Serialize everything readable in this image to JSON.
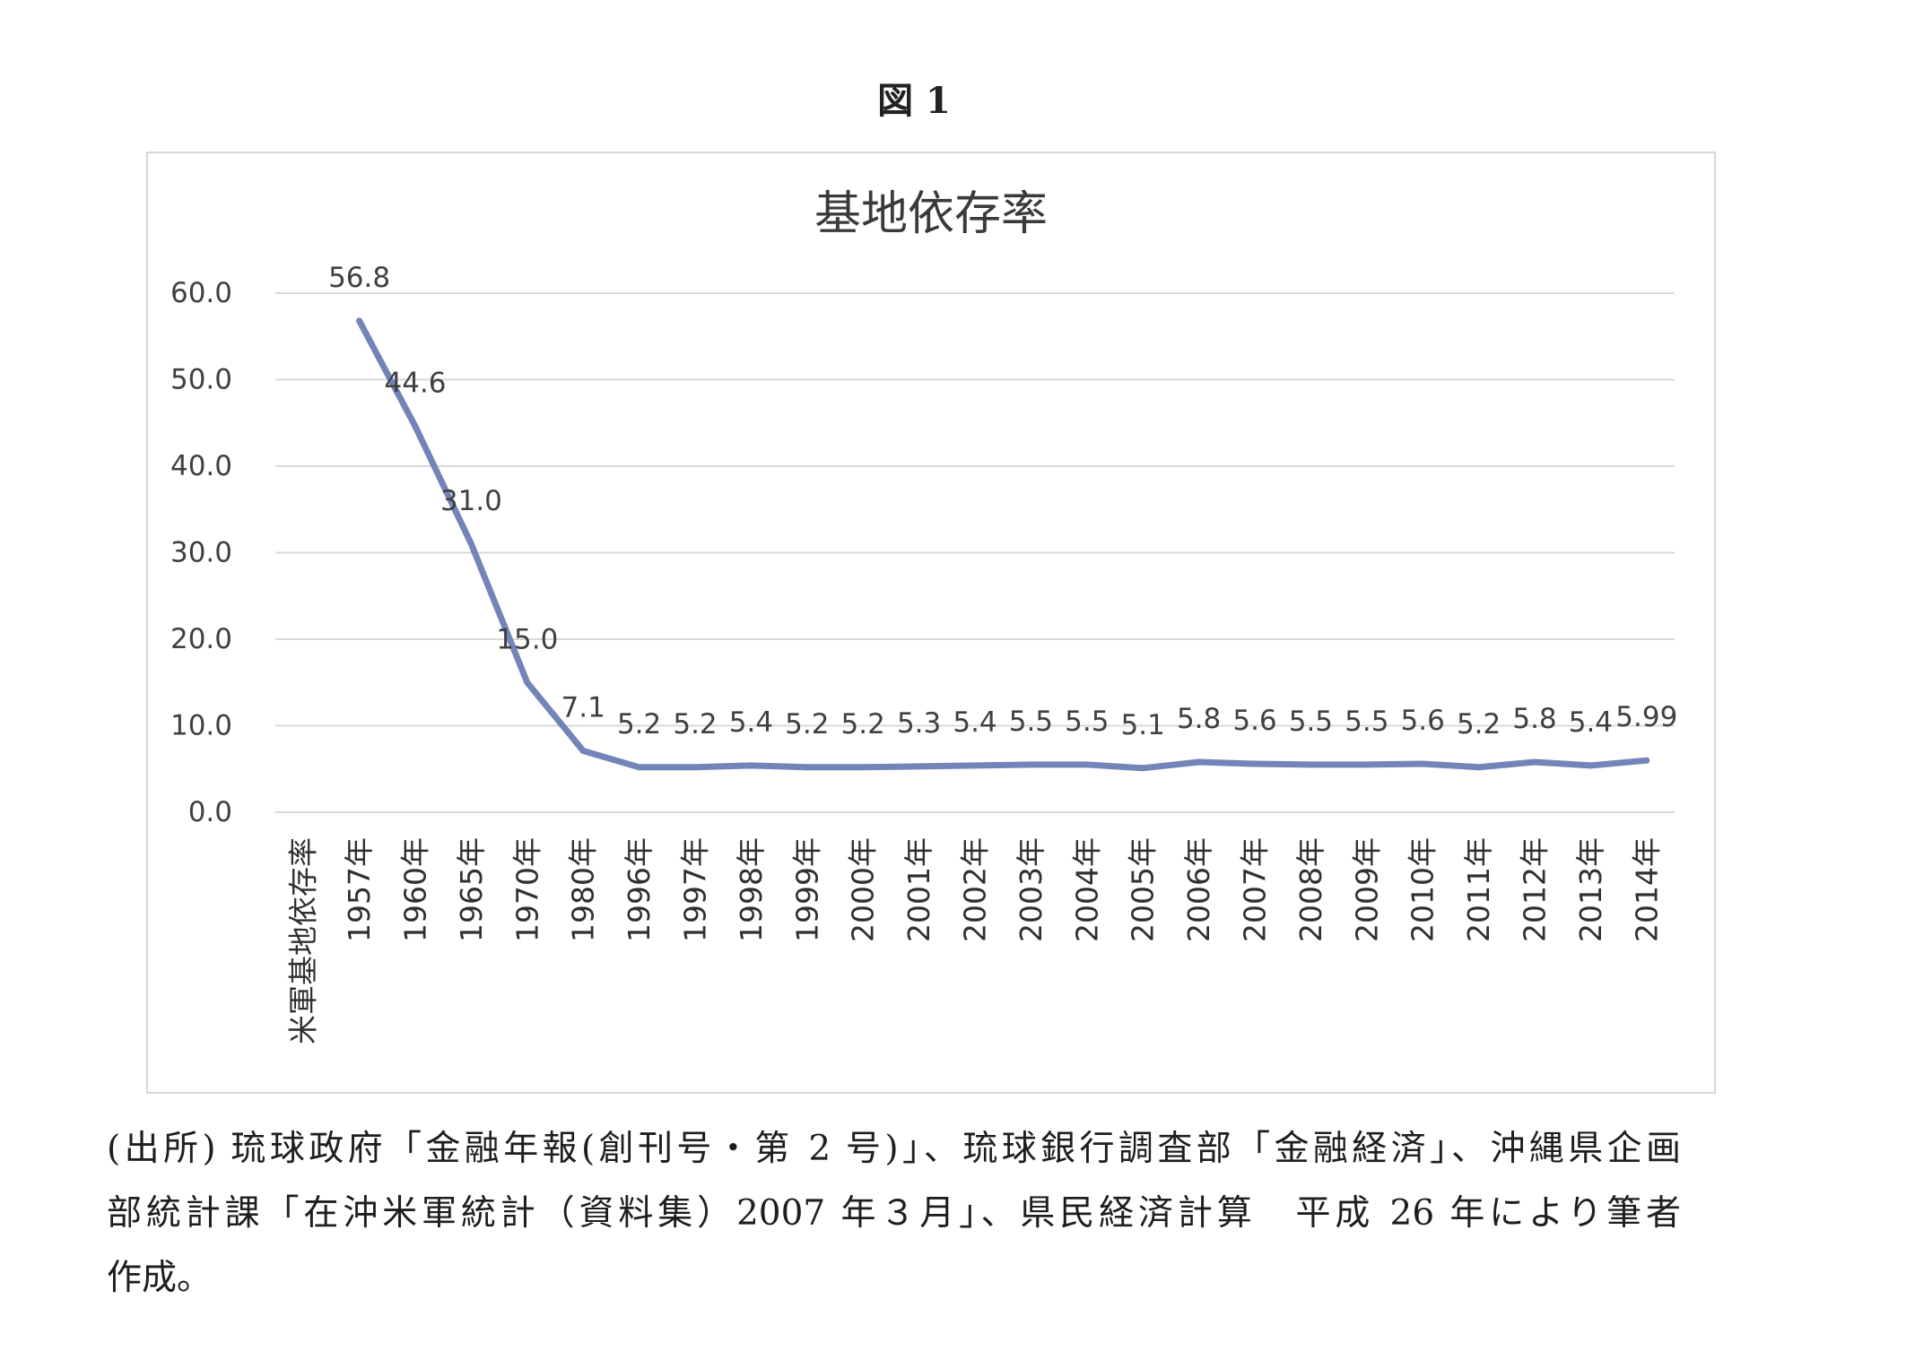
{
  "figure_label": "図 1",
  "chart_data": {
    "type": "line",
    "title": "基地依存率",
    "categories": [
      "米軍基地依存率",
      "1957年",
      "1960年",
      "1965年",
      "1970年",
      "1980年",
      "1996年",
      "1997年",
      "1998年",
      "1999年",
      "2000年",
      "2001年",
      "2002年",
      "2003年",
      "2004年",
      "2005年",
      "2006年",
      "2007年",
      "2008年",
      "2009年",
      "2010年",
      "2011年",
      "2012年",
      "2013年",
      "2014年"
    ],
    "series": [
      {
        "values": [
          null,
          56.8,
          44.6,
          31.0,
          15.0,
          7.1,
          5.2,
          5.2,
          5.4,
          5.2,
          5.2,
          5.3,
          5.4,
          5.5,
          5.5,
          5.1,
          5.8,
          5.6,
          5.5,
          5.5,
          5.6,
          5.2,
          5.8,
          5.4,
          5.99
        ],
        "data_labels": [
          null,
          "56.8",
          "44.6",
          "31.0",
          "15.0",
          "7.1",
          "5.2",
          "5.2",
          "5.4",
          "5.2",
          "5.2",
          "5.3",
          "5.4",
          "5.5",
          "5.5",
          "5.1",
          "5.8",
          "5.6",
          "5.5",
          "5.5",
          "5.6",
          "5.2",
          "5.8",
          "5.4",
          "5.99"
        ],
        "color": "#7384B8"
      }
    ],
    "ylim": [
      0,
      60
    ],
    "yticks": [
      0,
      10,
      20,
      30,
      40,
      50,
      60
    ],
    "ytick_labels": [
      "0.0",
      "10.0",
      "20.0",
      "30.0",
      "40.0",
      "50.0",
      "60.0"
    ],
    "xlabel": "",
    "ylabel": "",
    "grid": true,
    "legend": "none",
    "grid_color": "#d9d9d9",
    "text_color": "#404040"
  },
  "caption": {
    "lines": [
      "(出所) 琉球政府「金融年報(創刊号・第 2 号)」、琉球銀行調査部「金融経済」、沖縄県企画",
      "部統計課「在沖米軍統計（資料集）2007 年３月」、県民経済計算　平成 26 年により筆者",
      "作成。"
    ]
  }
}
